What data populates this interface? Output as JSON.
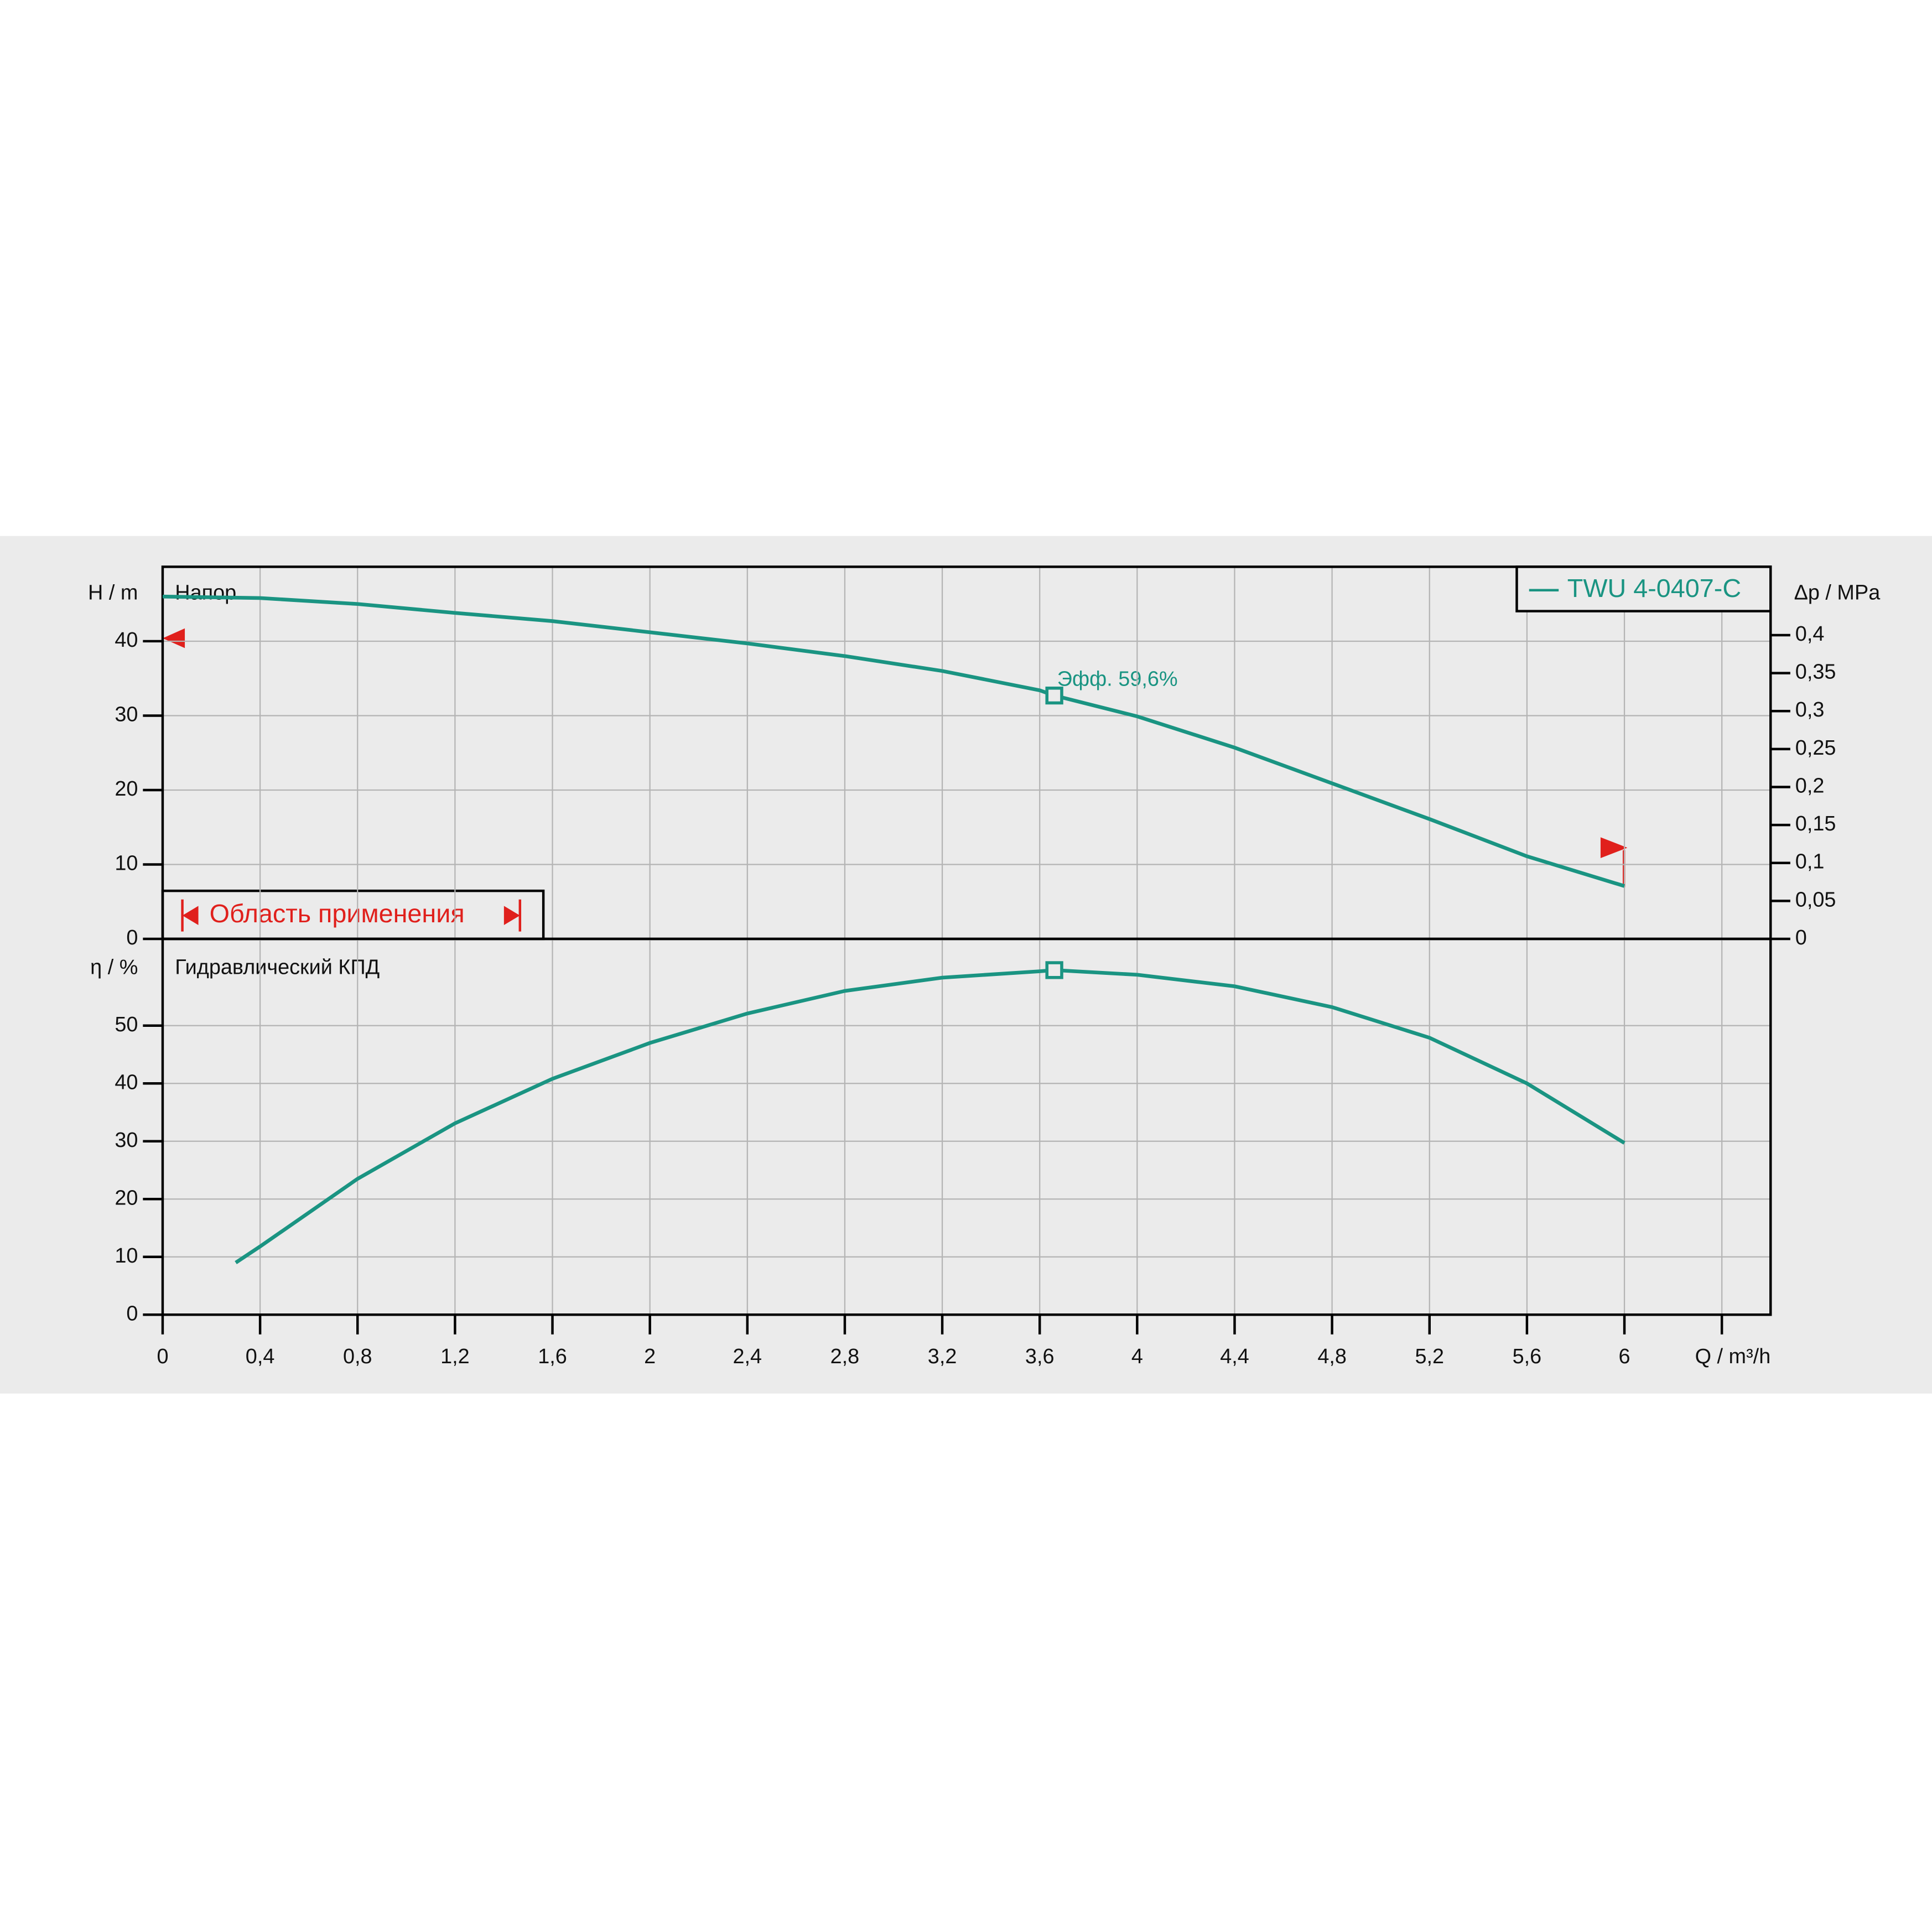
{
  "chart_data": [
    {
      "type": "line",
      "title": "Напор",
      "ylabel": "H / m",
      "y2label": "Δp / MPa",
      "xlim": [
        0,
        6.6
      ],
      "ylim": [
        0,
        50
      ],
      "yticks": [
        0,
        10,
        20,
        30,
        40
      ],
      "y2lim": [
        0,
        0.49
      ],
      "y2ticks": [
        0,
        {
          "value": 0.05,
          "label": "0,05"
        },
        {
          "value": 0.1,
          "label": "0,1"
        },
        {
          "value": 0.15,
          "label": "0,15"
        },
        {
          "value": 0.2,
          "label": "0,2"
        },
        {
          "value": 0.25,
          "label": "0,25"
        },
        {
          "value": 0.3,
          "label": "0,3"
        },
        {
          "value": 0.35,
          "label": "0,35"
        },
        {
          "value": 0.4,
          "label": "0,4"
        }
      ],
      "grid": true,
      "legend": "upper right",
      "x": [
        0,
        0.4,
        0.8,
        1.2,
        1.6,
        2,
        2.4,
        2.8,
        3.2,
        3.6,
        3.66,
        4,
        4.4,
        4.8,
        5.2,
        5.6,
        6
      ],
      "series": [
        {
          "name": "TWU 4-0407-C",
          "color": "#1a9482",
          "values": [
            46,
            45.8,
            45,
            43.8,
            42.7,
            41.2,
            39.7,
            38,
            36,
            33.4,
            32.7,
            29.9,
            25.7,
            20.9,
            16.1,
            11.1,
            7.1
          ]
        }
      ],
      "marker": {
        "x": 3.66,
        "y": 32.7
      },
      "annotation": "Эфф.  59,6%",
      "application_range": "Область применения"
    },
    {
      "type": "line",
      "title": "Гидравлический КПД",
      "ylabel": "η / %",
      "xlabel": "Q / m³/h",
      "xlim": [
        0,
        6.6
      ],
      "ylim": [
        0,
        65
      ],
      "yticks": [
        0,
        10,
        20,
        30,
        40,
        50
      ],
      "xticks": [
        0,
        {
          "value": 0.4,
          "label": "0,4"
        },
        {
          "value": 0.8,
          "label": "0,8"
        },
        {
          "value": 1.2,
          "label": "1,2"
        },
        {
          "value": 1.6,
          "label": "1,6"
        },
        2,
        {
          "value": 2.4,
          "label": "2,4"
        },
        {
          "value": 2.8,
          "label": "2,8"
        },
        {
          "value": 3.2,
          "label": "3,2"
        },
        {
          "value": 3.6,
          "label": "3,6"
        },
        4,
        {
          "value": 4.4,
          "label": "4,4"
        },
        {
          "value": 4.8,
          "label": "4,8"
        },
        {
          "value": 5.2,
          "label": "5,2"
        },
        {
          "value": 5.6,
          "label": "5,6"
        },
        6,
        {
          "value": 6.4,
          "label": ""
        }
      ],
      "grid": true,
      "x": [
        0.3,
        0.4,
        0.8,
        1.2,
        1.6,
        2,
        2.4,
        2.8,
        3.2,
        3.6,
        3.66,
        4,
        4.4,
        4.8,
        5.2,
        5.6,
        6
      ],
      "series": [
        {
          "color": "#1a9482",
          "values": [
            9,
            11.8,
            23.5,
            33.1,
            40.8,
            47,
            52.1,
            56,
            58.3,
            59.4,
            59.6,
            58.8,
            56.8,
            53.2,
            47.9,
            40,
            29.7
          ]
        }
      ],
      "marker": {
        "x": 3.66,
        "y": 59.6
      }
    }
  ]
}
